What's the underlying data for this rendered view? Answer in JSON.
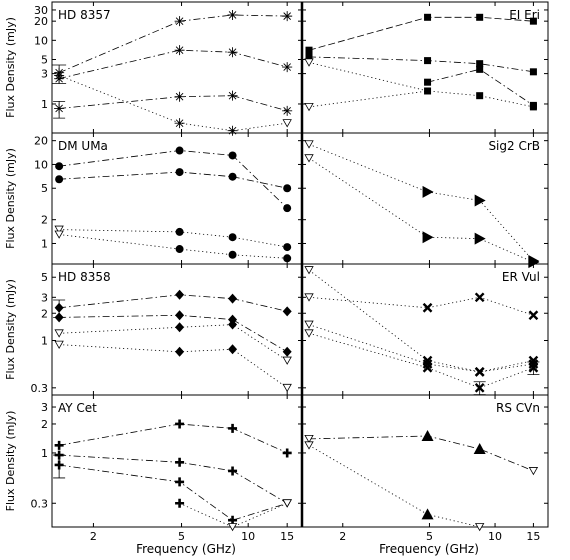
{
  "figure": {
    "xlabel": "Frequency (GHz)",
    "ylabel": "Flux Density (mJy)",
    "x_ticks": [
      2,
      5,
      10,
      15
    ],
    "xlim": [
      1.3,
      17.5
    ],
    "x_scale": "log",
    "y_scale": "log"
  },
  "chart_data": [
    {
      "type": "line",
      "title": "HD 8357",
      "marker": "asterisk",
      "ylim": [
        0.35,
        40
      ],
      "y_ticks": [
        1,
        3,
        5,
        10,
        20,
        30
      ],
      "series": [
        {
          "style": "dashdot",
          "x": [
            1.4,
            4.9,
            8.5,
            15
          ],
          "y": [
            3.1,
            20,
            25,
            24
          ],
          "yerr": [
            null,
            null,
            null,
            null
          ]
        },
        {
          "style": "dashdot",
          "x": [
            1.4,
            4.9,
            8.5,
            15
          ],
          "y": [
            2.5,
            7,
            6.5,
            3.8
          ],
          "yerr": [
            null,
            null,
            null,
            null
          ]
        },
        {
          "style": "dashdot",
          "x": [
            1.4,
            4.9,
            8.5,
            15
          ],
          "y": [
            0.85,
            1.3,
            1.35,
            0.78
          ],
          "yerr": [
            0.25,
            null,
            null,
            null
          ]
        },
        {
          "style": "dotted",
          "x": [
            1.4,
            4.9,
            8.5,
            15
          ],
          "y": [
            2.8,
            0.5,
            0.38,
            0.5
          ],
          "markers": [
            "asterisk",
            "asterisk",
            "asterisk",
            "triangle-down"
          ]
        }
      ],
      "errorbar": {
        "x": 1.4,
        "y": 3.1,
        "yerr": [
          1.0,
          1.0
        ]
      }
    },
    {
      "type": "line",
      "title": "EI Eri",
      "marker": "square",
      "ylim": [
        0.35,
        40
      ],
      "y_ticks": [
        1,
        3,
        5,
        10,
        20,
        30
      ],
      "series": [
        {
          "style": "dashed",
          "x": [
            1.4,
            4.9,
            8.5,
            15
          ],
          "y": [
            7,
            23,
            23,
            20
          ]
        },
        {
          "style": "dashdot",
          "x": [
            1.4,
            4.9,
            8.5,
            15
          ],
          "y": [
            5.5,
            4.8,
            4.3,
            3.2
          ]
        },
        {
          "style": "dashdot",
          "x": [
            1.4,
            4.9,
            8.5,
            15
          ],
          "y": [
            null,
            2.2,
            3.5,
            0.95
          ]
        },
        {
          "style": "dotted",
          "x": [
            1.4,
            4.9,
            8.5,
            15
          ],
          "y": [
            4.5,
            1.6,
            1.35,
            0.9
          ],
          "markers": [
            "triangle-down",
            "square",
            "square",
            "square"
          ]
        },
        {
          "style": "dotted",
          "x": [
            1.4,
            4.9
          ],
          "y": [
            0.9,
            1.6
          ],
          "markers": [
            "triangle-down",
            null
          ]
        }
      ]
    },
    {
      "type": "line",
      "title": "DM UMa",
      "marker": "circle",
      "ylim": [
        0.55,
        25
      ],
      "y_ticks": [
        1,
        2,
        5,
        10,
        20
      ],
      "series": [
        {
          "style": "dashdot",
          "x": [
            1.4,
            4.9,
            8.5,
            15
          ],
          "y": [
            9.5,
            15,
            13,
            2.8
          ]
        },
        {
          "style": "dashdot",
          "x": [
            1.4,
            4.9,
            8.5,
            15
          ],
          "y": [
            6.5,
            8,
            7,
            5
          ]
        },
        {
          "style": "dotted",
          "x": [
            1.4,
            4.9,
            8.5,
            15
          ],
          "y": [
            1.5,
            1.4,
            1.2,
            0.9
          ],
          "markers": [
            "triangle-down",
            "circle",
            "circle",
            "circle"
          ]
        },
        {
          "style": "dotted",
          "x": [
            1.4,
            4.9,
            8.5,
            15
          ],
          "y": [
            1.3,
            0.85,
            0.72,
            0.65
          ],
          "markers": [
            "triangle-down",
            "circle",
            "circle",
            "circle"
          ]
        }
      ]
    },
    {
      "type": "line",
      "title": "Sig2 CrB",
      "marker": "triangle-right",
      "ylim": [
        0.55,
        25
      ],
      "y_ticks": [
        1,
        2,
        5,
        10,
        20
      ],
      "series": [
        {
          "style": "dotted",
          "x": [
            1.4,
            4.9,
            8.5,
            15
          ],
          "y": [
            18,
            4.5,
            3.5,
            0.6
          ],
          "markers": [
            "triangle-down",
            "triangle-right",
            "triangle-right",
            "triangle-right"
          ]
        },
        {
          "style": "dotted",
          "x": [
            1.4,
            4.9,
            8.5,
            15
          ],
          "y": [
            12,
            1.2,
            1.15,
            0.58
          ],
          "markers": [
            "triangle-down",
            "triangle-right",
            "triangle-right",
            "triangle-right"
          ]
        }
      ]
    },
    {
      "type": "line",
      "title": "HD 8358",
      "marker": "diamond",
      "ylim": [
        0.25,
        7
      ],
      "y_ticks": [
        0.3,
        1,
        2,
        3,
        5
      ],
      "series": [
        {
          "style": "dashdot",
          "x": [
            1.4,
            4.9,
            8.5,
            15
          ],
          "y": [
            2.3,
            3.2,
            2.9,
            2.1
          ],
          "yerr": [
            0.5,
            null,
            null,
            null
          ]
        },
        {
          "style": "dashdot",
          "x": [
            1.4,
            4.9,
            8.5,
            15
          ],
          "y": [
            1.8,
            1.9,
            1.7,
            0.75
          ]
        },
        {
          "style": "dotted",
          "x": [
            1.4,
            4.9,
            8.5,
            15
          ],
          "y": [
            1.2,
            1.4,
            1.5,
            0.6
          ],
          "markers": [
            "triangle-down",
            "diamond",
            "diamond",
            "triangle-down"
          ]
        },
        {
          "style": "dotted",
          "x": [
            1.4,
            4.9,
            8.5,
            15
          ],
          "y": [
            0.9,
            0.75,
            0.8,
            0.3
          ],
          "markers": [
            "triangle-down",
            "diamond",
            "diamond",
            "triangle-down"
          ]
        }
      ]
    },
    {
      "type": "line",
      "title": "ER Vul",
      "marker": "x",
      "ylim": [
        0.25,
        7
      ],
      "y_ticks": [
        0.3,
        1,
        2,
        3,
        5
      ],
      "series": [
        {
          "style": "dotted",
          "x": [
            1.4,
            4.9,
            8.5,
            15
          ],
          "y": [
            6,
            0.6,
            0.45,
            0.55
          ],
          "markers": [
            "triangle-down",
            "x",
            "x",
            "x"
          ]
        },
        {
          "style": "dotted",
          "x": [
            1.4,
            4.9,
            8.5,
            15
          ],
          "y": [
            3.0,
            2.3,
            3.0,
            1.9
          ],
          "markers": [
            "triangle-down",
            "x",
            "x",
            "x"
          ]
        },
        {
          "style": "dotted",
          "x": [
            1.4,
            4.9,
            8.5,
            15
          ],
          "y": [
            1.5,
            0.55,
            0.45,
            0.6
          ],
          "markers": [
            "triangle-down",
            "x",
            "x",
            "x"
          ]
        },
        {
          "style": "dotted",
          "x": [
            1.4,
            4.9,
            8.5,
            15
          ],
          "y": [
            1.2,
            0.5,
            0.3,
            0.5
          ],
          "markers": [
            "triangle-down",
            "x",
            "x",
            "x"
          ],
          "yerr": [
            null,
            null,
            0.05,
            0.08
          ]
        }
      ]
    },
    {
      "type": "line",
      "title": "AY Cet",
      "marker": "plus",
      "ylim": [
        0.17,
        4
      ],
      "y_ticks": [
        0.3,
        1,
        2,
        3
      ],
      "series": [
        {
          "style": "dashdot",
          "x": [
            1.4,
            4.9,
            8.5,
            15
          ],
          "y": [
            1.2,
            2.0,
            1.8,
            1.0
          ]
        },
        {
          "style": "dashdot",
          "x": [
            1.4,
            4.9,
            8.5,
            15
          ],
          "y": [
            0.95,
            0.8,
            0.65,
            0.3
          ],
          "markers": [
            "plus",
            "plus",
            "plus",
            "triangle-down"
          ]
        },
        {
          "style": "dashdot",
          "x": [
            1.4,
            4.9,
            8.5,
            15
          ],
          "y": [
            0.75,
            0.5,
            0.2,
            0.3
          ],
          "markers": [
            "plus",
            "plus",
            "plus",
            "triangle-down"
          ],
          "yerr": [
            0.2,
            null,
            null,
            null
          ]
        },
        {
          "style": "dotted",
          "x": [
            1.4,
            4.9,
            8.5,
            15
          ],
          "y": [
            null,
            0.3,
            0.17,
            0.3
          ],
          "markers": [
            null,
            "plus",
            "triangle-down",
            "triangle-down"
          ]
        }
      ]
    },
    {
      "type": "line",
      "title": "RS CVn",
      "marker": "triangle-up",
      "ylim": [
        0.17,
        4
      ],
      "y_ticks": [
        0.3,
        1,
        2,
        3
      ],
      "series": [
        {
          "style": "dashdot",
          "x": [
            1.4,
            4.9,
            8.5,
            15
          ],
          "y": [
            1.4,
            1.5,
            1.1,
            0.65
          ],
          "markers": [
            "triangle-down",
            "triangle-up",
            "triangle-up",
            "triangle-down"
          ]
        },
        {
          "style": "dotted",
          "x": [
            1.4,
            4.9,
            8.5
          ],
          "y": [
            1.2,
            0.23,
            0.17
          ],
          "markers": [
            "triangle-down",
            "triangle-up",
            "triangle-down"
          ]
        }
      ]
    }
  ]
}
